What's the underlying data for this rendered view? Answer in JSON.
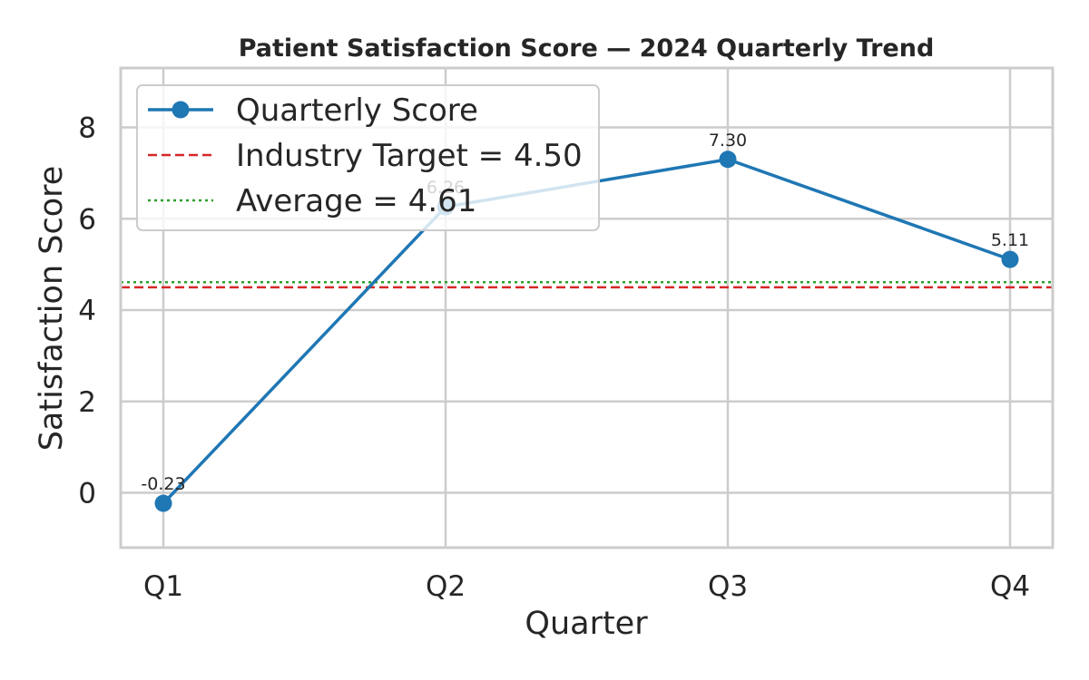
{
  "chart_data": {
    "type": "line",
    "title": "Patient Satisfaction Score — 2024 Quarterly Trend",
    "xlabel": "Quarter",
    "ylabel": "Satisfaction Score",
    "categories": [
      "Q1",
      "Q2",
      "Q3",
      "Q4"
    ],
    "series": [
      {
        "name": "Quarterly Score",
        "values": [
          -0.23,
          6.26,
          7.3,
          5.11
        ],
        "labels": [
          "-0.23",
          "6.26",
          "7.30",
          "5.11"
        ],
        "color": "#1f77b4"
      }
    ],
    "reference_lines": [
      {
        "name": "Industry Target = 4.50",
        "value": 4.5,
        "color": "#d62728",
        "style": "dashed"
      },
      {
        "name": "Average = 4.61",
        "value": 4.61,
        "color": "#2ca02c",
        "style": "dotted"
      }
    ],
    "ylim": [
      -1.2,
      9.3
    ],
    "yticks": [
      0,
      2,
      4,
      6,
      8
    ],
    "ytick_labels": [
      "0",
      "2",
      "4",
      "6",
      "8"
    ],
    "grid": true,
    "legend_position": "top-left"
  }
}
